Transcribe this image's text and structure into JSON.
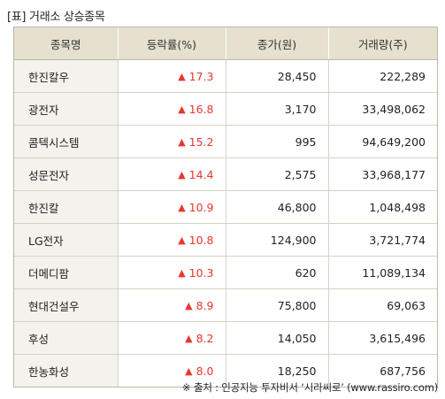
{
  "title": "[표] 거래소 상승종목",
  "headers": [
    "종목명",
    "등락률(%)",
    "종가(원)",
    "거래량(주)"
  ],
  "rows": [
    {
      "name": "한진칼우",
      "rate": "17.3",
      "close": "28,450",
      "volume": "222,289"
    },
    {
      "name": "광전자",
      "rate": "16.8",
      "close": "3,170",
      "volume": "33,498,062"
    },
    {
      "name": "콤텍시스템",
      "rate": "15.2",
      "close": "995",
      "volume": "94,649,200"
    },
    {
      "name": "성문전자",
      "rate": "14.4",
      "close": "2,575",
      "volume": "33,968,177"
    },
    {
      "name": "한진칼",
      "rate": "10.9",
      "close": "46,800",
      "volume": "1,048,498"
    },
    {
      "name": "LG전자",
      "rate": "10.8",
      "close": "124,900",
      "volume": "3,721,774"
    },
    {
      "name": "더메디팜",
      "rate": "10.3",
      "close": "620",
      "volume": "11,089,134"
    },
    {
      "name": "현대건설우",
      "rate": "8.9",
      "close": "75,800",
      "volume": "69,063"
    },
    {
      "name": "후성",
      "rate": "8.2",
      "close": "14,050",
      "volume": "3,615,496"
    },
    {
      "name": "한농화성",
      "rate": "8.0",
      "close": "18,250",
      "volume": "687,756"
    }
  ],
  "up_symbol": "▲",
  "icon": "triangle-up-icon",
  "colors": {
    "up": "#e8362e",
    "header_bg": "#e6e0cf",
    "name_bg": "#f4f2ec"
  },
  "source": "※ 출처 : 인공지능 투자비서 ‘시라씨로’ (www.rassiro.com)"
}
